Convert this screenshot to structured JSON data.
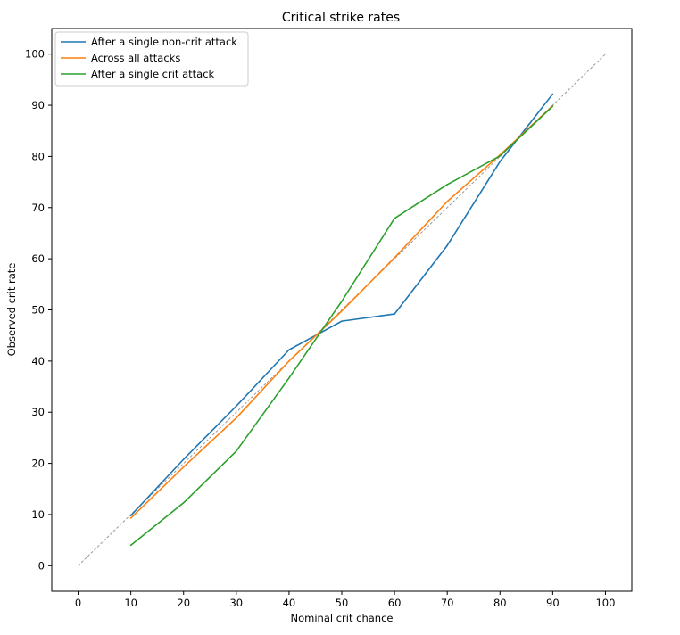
{
  "chart_data": {
    "type": "line",
    "title": "Critical strike rates",
    "xlabel": "Nominal crit chance",
    "ylabel": "Observed crit rate",
    "xlim": [
      -5,
      105
    ],
    "ylim": [
      -5,
      105
    ],
    "xticks": [
      0,
      10,
      20,
      30,
      40,
      50,
      60,
      70,
      80,
      90,
      100
    ],
    "yticks": [
      0,
      10,
      20,
      30,
      40,
      50,
      60,
      70,
      80,
      90,
      100
    ],
    "grid": false,
    "legend_position": "top-left",
    "reference_line": {
      "x": [
        0,
        100
      ],
      "y": [
        0,
        100
      ],
      "color": "#999999",
      "style": "dashed"
    },
    "series": [
      {
        "name": "After a single non-crit attack",
        "color": "#1f77b4",
        "x": [
          10,
          20,
          30,
          40,
          50,
          60,
          70,
          80,
          90
        ],
        "y": [
          9.8,
          20.8,
          31.2,
          42.2,
          47.8,
          49.2,
          62.6,
          79.0,
          92.2
        ]
      },
      {
        "name": "Across all attacks",
        "color": "#ff7f0e",
        "x": [
          10,
          20,
          30,
          40,
          50,
          60,
          70,
          80,
          90
        ],
        "y": [
          9.3,
          19.3,
          28.9,
          40.0,
          49.8,
          60.2,
          71.2,
          80.3,
          89.9
        ]
      },
      {
        "name": "After a single crit attack",
        "color": "#2ca02c",
        "x": [
          10,
          20,
          30,
          40,
          50,
          60,
          70,
          80,
          90
        ],
        "y": [
          4.0,
          12.3,
          22.4,
          36.7,
          51.7,
          67.9,
          74.5,
          80.1,
          89.8
        ]
      }
    ]
  }
}
